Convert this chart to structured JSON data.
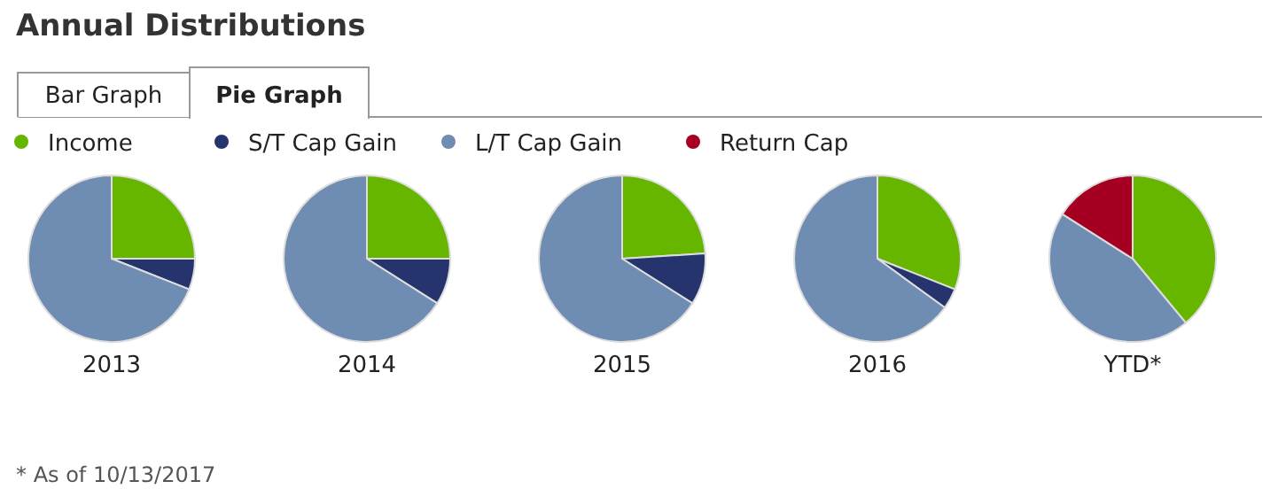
{
  "chart_data": {
    "type": "pie",
    "title": "Annual Distributions",
    "legend": "top",
    "annotations": [
      "Bar Graph",
      "Pie Graph",
      "* As of 10/13/2017"
    ],
    "categories": [
      "Income",
      "S/T Cap Gain",
      "L/T Cap Gain",
      "Return Cap"
    ],
    "colors": [
      "#66b600",
      "#25346c",
      "#6f8cb3",
      "#a50021"
    ],
    "series": [
      {
        "name": "2013",
        "values": [
          25,
          6,
          69,
          0
        ]
      },
      {
        "name": "2014",
        "values": [
          25,
          9,
          66,
          0
        ]
      },
      {
        "name": "2015",
        "values": [
          24,
          10,
          66,
          0
        ]
      },
      {
        "name": "2016",
        "values": [
          31,
          4,
          65,
          0
        ]
      },
      {
        "name": "YTD*",
        "values": [
          39,
          0,
          45,
          16
        ]
      }
    ]
  }
}
